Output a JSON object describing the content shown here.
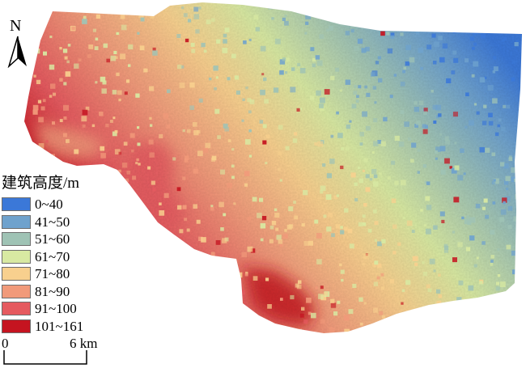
{
  "map": {
    "north_label": "N",
    "legend": {
      "title": "建筑高度/m",
      "classes": [
        {
          "label": "0~40",
          "color": "#3b78d8"
        },
        {
          "label": "41~50",
          "color": "#6fa2cd"
        },
        {
          "label": "51~60",
          "color": "#9fc3b5"
        },
        {
          "label": "61~70",
          "color": "#d8e9a2"
        },
        {
          "label": "71~80",
          "color": "#f8d08e"
        },
        {
          "label": "81~90",
          "color": "#f19a7a"
        },
        {
          "label": "91~100",
          "color": "#e55a5f"
        },
        {
          "label": "101~161",
          "color": "#c51420"
        }
      ]
    },
    "scale_bar": {
      "start_label": "0",
      "end_label": "6 km"
    }
  }
}
